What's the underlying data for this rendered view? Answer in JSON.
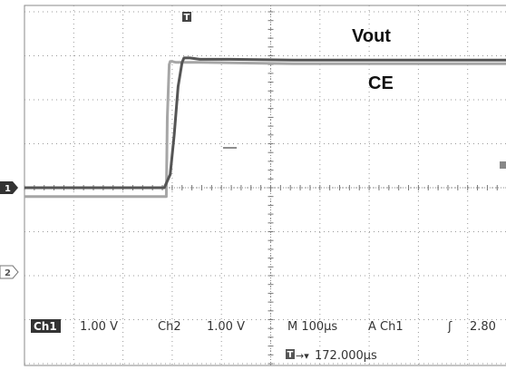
{
  "chart_data": {
    "type": "line",
    "title": "",
    "xlabel": "",
    "ylabel": "",
    "x_unit": "µs",
    "xlim": [
      -296,
      704
    ],
    "x_per_div": 100,
    "y_per_div": 1.0,
    "ylim_divisions": [
      -4,
      4
    ],
    "grid": true,
    "series": [
      {
        "name": "Vout",
        "channel": "1",
        "color": "#555555",
        "x": [
          -296,
          -12,
          0,
          8,
          16,
          24,
          28,
          40,
          60,
          120,
          250,
          450,
          600,
          704
        ],
        "y": [
          0.0,
          0.0,
          0.3,
          1.2,
          2.3,
          2.85,
          2.95,
          2.95,
          2.92,
          2.92,
          2.9,
          2.9,
          2.9,
          2.9
        ]
      },
      {
        "name": "CE",
        "channel": "2",
        "color": "#a6a6a6",
        "x": [
          -296,
          -8,
          -6,
          -2,
          0,
          4,
          12,
          60,
          250,
          704
        ],
        "y": [
          -0.2,
          -0.2,
          1.6,
          2.8,
          2.87,
          2.87,
          2.85,
          2.85,
          2.82,
          2.82
        ]
      }
    ],
    "labels": {
      "vout": "Vout",
      "ce": "CE"
    },
    "markers": {
      "trigger_top": "T",
      "ch1_ground": "1",
      "ch2_ground": "2"
    },
    "readout": {
      "ch1_box": "Ch1",
      "ch1_scale": "1.00 V",
      "ch2": "Ch2",
      "ch2_scale": "1.00 V",
      "timebase": "M 100µs",
      "trigger": "A  Ch1",
      "trigger_slope": "ʃ",
      "trigger_level": "2.80",
      "trigger_icon": "T",
      "position_arrow": "→▾",
      "position": "172.000µs"
    }
  }
}
